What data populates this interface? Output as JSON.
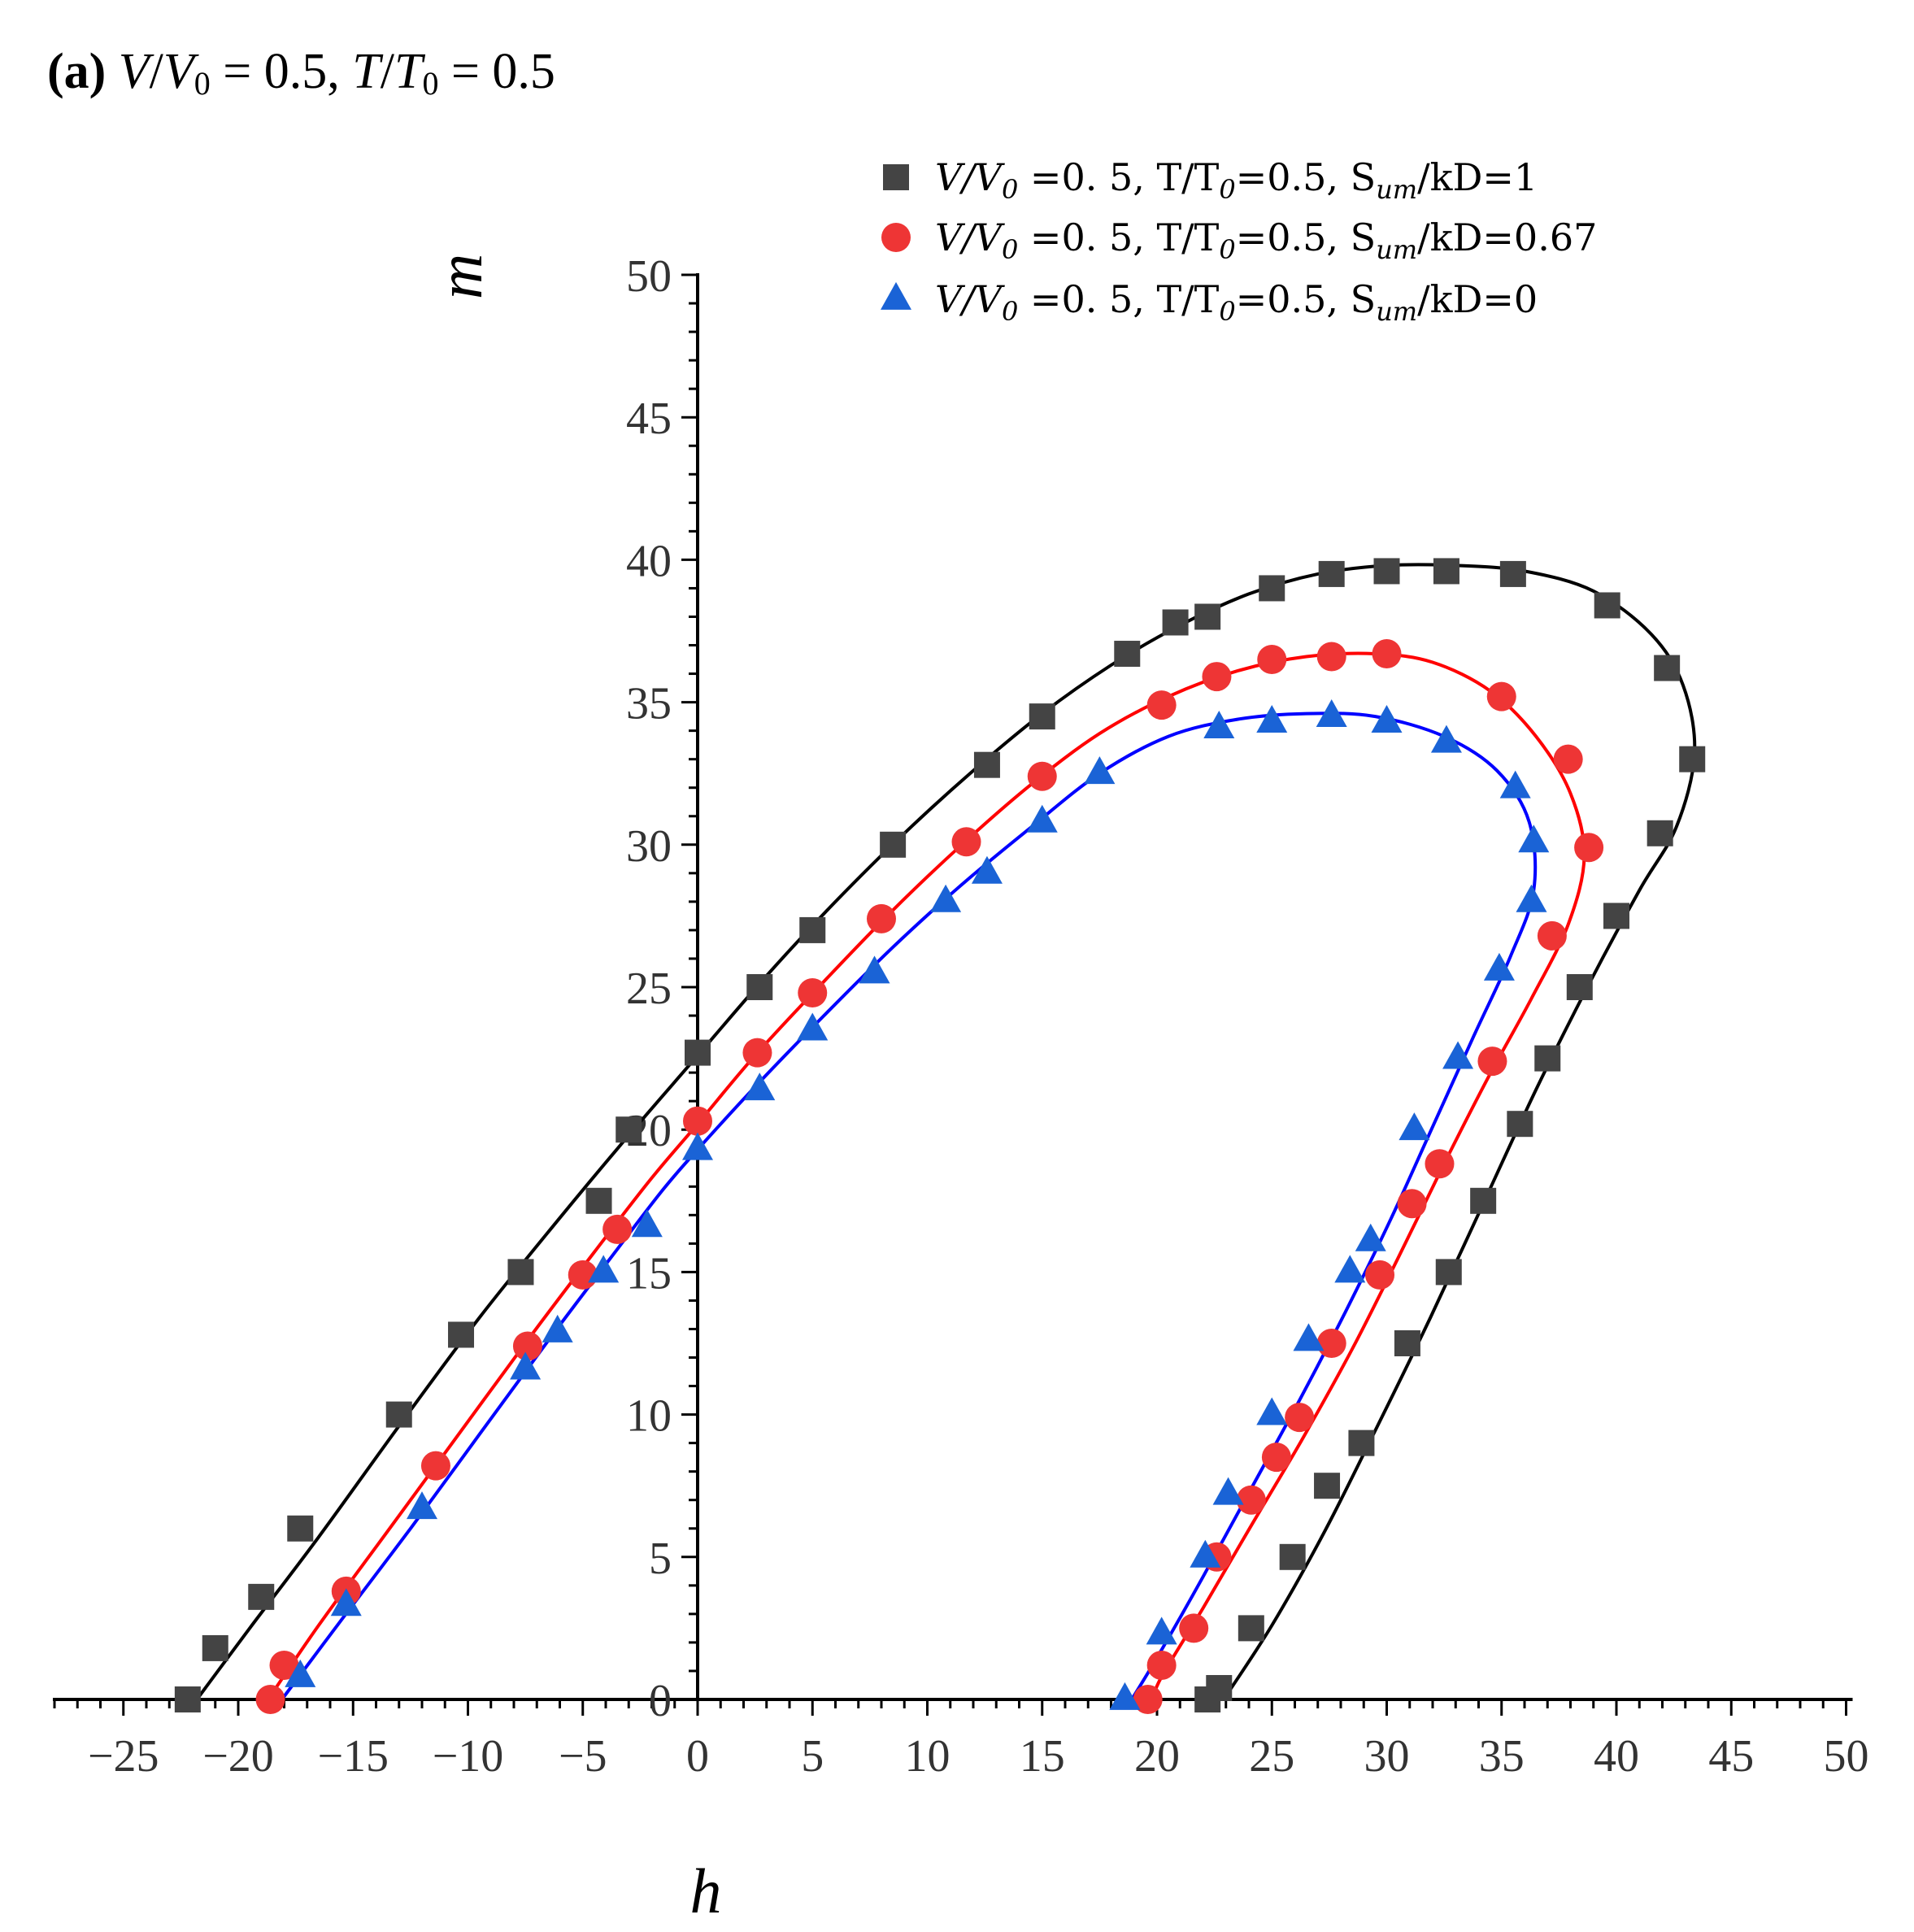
{
  "figure": {
    "panel_label": "(a)",
    "panel_formula": {
      "v": "V",
      "slash1": "/",
      "v0": "V",
      "v0_sub": "0",
      "eq1": " = 0.5, ",
      "t": "T",
      "slash2": "/",
      "t0": "T",
      "t0_sub": "0",
      "eq2": " = 0.5"
    }
  },
  "chart_data": {
    "type": "scatter",
    "title": "(a) V/V0 = 0.5, T/T0 = 0.5",
    "xlabel": "h",
    "ylabel": "m",
    "xlim": [
      -28,
      50
    ],
    "ylim": [
      0,
      50
    ],
    "x_ticks": [
      -25,
      -20,
      -15,
      -10,
      -5,
      0,
      5,
      10,
      15,
      20,
      25,
      30,
      35,
      40,
      45,
      50
    ],
    "y_ticks": [
      0,
      5,
      10,
      15,
      20,
      25,
      30,
      35,
      40,
      45,
      50
    ],
    "x_tick_labels": [
      "−25",
      "−20",
      "−15",
      "−10",
      "−5",
      "0",
      "5",
      "10",
      "15",
      "20",
      "25",
      "30",
      "35",
      "40",
      "45",
      "50"
    ],
    "y_tick_labels": [
      "0",
      "5",
      "10",
      "15",
      "20",
      "25",
      "30",
      "35",
      "40",
      "45",
      "50"
    ],
    "legend_position": "top-right",
    "series": [
      {
        "name": "V/V0 =0.5, T/T0=0.5, Sum/kD=1",
        "legend": {
          "a": "V/V",
          "a_sub": "0",
          "b": " =0. 5,  T/T",
          "b_sub": "0",
          "c": "=0.5,   S",
          "c_sub": "um",
          "d": "/kD=1"
        },
        "marker": "square",
        "color": "#444444",
        "line_color": "#000000",
        "points": [
          [
            -22.2,
            0
          ],
          [
            -21.0,
            1.8
          ],
          [
            -19.0,
            3.6
          ],
          [
            -17.3,
            6.0
          ],
          [
            -13.0,
            10.0
          ],
          [
            -10.3,
            12.8
          ],
          [
            -7.7,
            15.0
          ],
          [
            -4.3,
            17.5
          ],
          [
            -3.0,
            20.0
          ],
          [
            0.0,
            22.7
          ],
          [
            2.7,
            25.0
          ],
          [
            5.0,
            27.0
          ],
          [
            8.5,
            30.0
          ],
          [
            12.6,
            32.8
          ],
          [
            15.0,
            34.5
          ],
          [
            18.7,
            36.7
          ],
          [
            20.8,
            37.8
          ],
          [
            22.2,
            38.0
          ],
          [
            25.0,
            39.0
          ],
          [
            27.6,
            39.5
          ],
          [
            30.0,
            39.6
          ],
          [
            32.6,
            39.6
          ],
          [
            35.5,
            39.5
          ],
          [
            39.6,
            38.4
          ],
          [
            42.2,
            36.2
          ],
          [
            43.3,
            33.0
          ],
          [
            41.9,
            30.4
          ],
          [
            40.0,
            27.5
          ],
          [
            38.4,
            25.0
          ],
          [
            37.0,
            22.5
          ],
          [
            35.8,
            20.2
          ],
          [
            34.2,
            17.5
          ],
          [
            32.7,
            15.0
          ],
          [
            30.9,
            12.5
          ],
          [
            28.9,
            9.0
          ],
          [
            27.4,
            7.5
          ],
          [
            25.9,
            5.0
          ],
          [
            24.1,
            2.5
          ],
          [
            22.7,
            0.4
          ],
          [
            22.2,
            0
          ]
        ],
        "curve": [
          [
            -21.8,
            0
          ],
          [
            -19.5,
            2.5
          ],
          [
            -16.5,
            5.7
          ],
          [
            -13.0,
            9.6
          ],
          [
            -9.5,
            13.4
          ],
          [
            -6.0,
            16.9
          ],
          [
            -3.0,
            19.8
          ],
          [
            0.0,
            22.6
          ],
          [
            3.0,
            25.4
          ],
          [
            6.0,
            28.0
          ],
          [
            9.0,
            30.4
          ],
          [
            12.0,
            32.6
          ],
          [
            15.0,
            34.6
          ],
          [
            18.0,
            36.3
          ],
          [
            21.0,
            37.7
          ],
          [
            24.0,
            38.8
          ],
          [
            27.0,
            39.5
          ],
          [
            30.0,
            39.8
          ],
          [
            33.0,
            39.8
          ],
          [
            36.0,
            39.6
          ],
          [
            39.0,
            38.9
          ],
          [
            41.5,
            37.4
          ],
          [
            42.9,
            35.6
          ],
          [
            43.4,
            33.2
          ],
          [
            42.6,
            30.6
          ],
          [
            41.0,
            28.4
          ],
          [
            38.8,
            25.1
          ],
          [
            36.5,
            21.4
          ],
          [
            34.2,
            17.4
          ],
          [
            31.9,
            13.4
          ],
          [
            29.6,
            9.6
          ],
          [
            27.3,
            5.9
          ],
          [
            25.0,
            2.6
          ],
          [
            22.9,
            0
          ]
        ]
      },
      {
        "name": "V/V0 =0.5, T/T0=0.5, Sum/kD=0.67",
        "legend": {
          "a": "V/V",
          "a_sub": "0",
          "b": " =0. 5,  T/T",
          "b_sub": "0",
          "c": "=0.5,   S",
          "c_sub": "um",
          "d": "/kD=0.67"
        },
        "marker": "circle",
        "color": "#ee3535",
        "line_color": "#ff0000",
        "points": [
          [
            -18.6,
            0
          ],
          [
            -18.0,
            1.2
          ],
          [
            -15.3,
            3.8
          ],
          [
            -11.4,
            8.2
          ],
          [
            -7.4,
            12.4
          ],
          [
            -5.0,
            14.9
          ],
          [
            -3.5,
            16.5
          ],
          [
            0.0,
            20.3
          ],
          [
            2.6,
            22.7
          ],
          [
            5.0,
            24.8
          ],
          [
            8.0,
            27.4
          ],
          [
            11.7,
            30.1
          ],
          [
            15.0,
            32.4
          ],
          [
            20.2,
            34.9
          ],
          [
            22.6,
            35.9
          ],
          [
            25.0,
            36.5
          ],
          [
            27.6,
            36.6
          ],
          [
            30.0,
            36.7
          ],
          [
            35.0,
            35.2
          ],
          [
            37.9,
            33.0
          ],
          [
            38.8,
            29.9
          ],
          [
            37.2,
            26.8
          ],
          [
            34.6,
            22.4
          ],
          [
            32.3,
            18.8
          ],
          [
            31.1,
            17.4
          ],
          [
            29.7,
            14.9
          ],
          [
            27.6,
            12.5
          ],
          [
            26.2,
            9.9
          ],
          [
            25.2,
            8.5
          ],
          [
            24.1,
            7.0
          ],
          [
            22.6,
            5.0
          ],
          [
            21.6,
            2.5
          ],
          [
            20.2,
            1.2
          ],
          [
            19.6,
            0
          ]
        ],
        "curve": [
          [
            -18.7,
            0
          ],
          [
            -16.5,
            2.6
          ],
          [
            -13.5,
            5.9
          ],
          [
            -10.5,
            9.2
          ],
          [
            -7.5,
            12.5
          ],
          [
            -4.5,
            15.7
          ],
          [
            -2.0,
            18.3
          ],
          [
            0.0,
            20.2
          ],
          [
            2.5,
            22.6
          ],
          [
            5.5,
            25.2
          ],
          [
            8.5,
            27.7
          ],
          [
            11.5,
            30.0
          ],
          [
            14.5,
            32.1
          ],
          [
            17.5,
            33.9
          ],
          [
            20.5,
            35.2
          ],
          [
            23.5,
            36.1
          ],
          [
            26.5,
            36.6
          ],
          [
            29.5,
            36.7
          ],
          [
            32.0,
            36.4
          ],
          [
            34.5,
            35.4
          ],
          [
            36.5,
            33.8
          ],
          [
            38.0,
            31.8
          ],
          [
            38.6,
            29.6
          ],
          [
            37.9,
            27.2
          ],
          [
            36.3,
            24.6
          ],
          [
            34.4,
            21.8
          ],
          [
            32.5,
            18.8
          ],
          [
            30.5,
            15.5
          ],
          [
            28.5,
            12.3
          ],
          [
            26.3,
            9.1
          ],
          [
            24.1,
            6.1
          ],
          [
            22.0,
            3.2
          ],
          [
            20.2,
            0.8
          ],
          [
            19.8,
            0
          ]
        ]
      },
      {
        "name": "V/V0 =0.5, T/T0=0.5, Sum/kD=0",
        "legend": {
          "a": "V/V",
          "a_sub": "0",
          "b": " =0. 5,  T/T",
          "b_sub": "0",
          "c": "=0.5,   S",
          "c_sub": "um",
          "d": "/kD=0"
        },
        "marker": "triangle",
        "color": "#1a63d6",
        "line_color": "#0000ff",
        "points": [
          [
            -17.3,
            0.8
          ],
          [
            -15.3,
            3.3
          ],
          [
            -12.0,
            6.7
          ],
          [
            -7.5,
            11.6
          ],
          [
            -6.1,
            12.9
          ],
          [
            -4.1,
            15.0
          ],
          [
            -2.2,
            16.6
          ],
          [
            0.0,
            19.3
          ],
          [
            2.7,
            21.4
          ],
          [
            5.0,
            23.5
          ],
          [
            7.7,
            25.5
          ],
          [
            10.8,
            28.0
          ],
          [
            12.6,
            29.0
          ],
          [
            15.0,
            30.8
          ],
          [
            17.5,
            32.5
          ],
          [
            22.7,
            34.1
          ],
          [
            25.0,
            34.3
          ],
          [
            27.6,
            34.5
          ],
          [
            30.0,
            34.3
          ],
          [
            32.6,
            33.6
          ],
          [
            35.6,
            32.0
          ],
          [
            36.4,
            30.1
          ],
          [
            36.3,
            28.0
          ],
          [
            34.9,
            25.6
          ],
          [
            33.1,
            22.5
          ],
          [
            31.2,
            20.0
          ],
          [
            29.3,
            16.1
          ],
          [
            28.4,
            15.0
          ],
          [
            26.6,
            12.6
          ],
          [
            25.0,
            10.0
          ],
          [
            23.1,
            7.2
          ],
          [
            22.1,
            5.0
          ],
          [
            20.2,
            2.3
          ],
          [
            18.6,
            0
          ]
        ],
        "curve": [
          [
            -18.1,
            0
          ],
          [
            -15.5,
            2.8
          ],
          [
            -12.5,
            6.0
          ],
          [
            -9.5,
            9.3
          ],
          [
            -6.5,
            12.6
          ],
          [
            -3.5,
            15.8
          ],
          [
            -1.5,
            17.9
          ],
          [
            0.0,
            19.3
          ],
          [
            2.5,
            21.5
          ],
          [
            5.5,
            24.0
          ],
          [
            8.5,
            26.4
          ],
          [
            11.5,
            28.6
          ],
          [
            14.5,
            30.6
          ],
          [
            17.5,
            32.5
          ],
          [
            20.5,
            33.8
          ],
          [
            23.5,
            34.4
          ],
          [
            26.5,
            34.6
          ],
          [
            29.5,
            34.5
          ],
          [
            32.5,
            33.8
          ],
          [
            34.8,
            32.6
          ],
          [
            36.2,
            30.8
          ],
          [
            36.4,
            28.4
          ],
          [
            35.4,
            26.1
          ],
          [
            33.8,
            23.3
          ],
          [
            32.0,
            20.1
          ],
          [
            30.2,
            16.9
          ],
          [
            28.2,
            13.6
          ],
          [
            26.2,
            10.5
          ],
          [
            24.1,
            7.4
          ],
          [
            22.0,
            4.3
          ],
          [
            20.1,
            1.6
          ],
          [
            18.9,
            0
          ]
        ]
      }
    ]
  }
}
